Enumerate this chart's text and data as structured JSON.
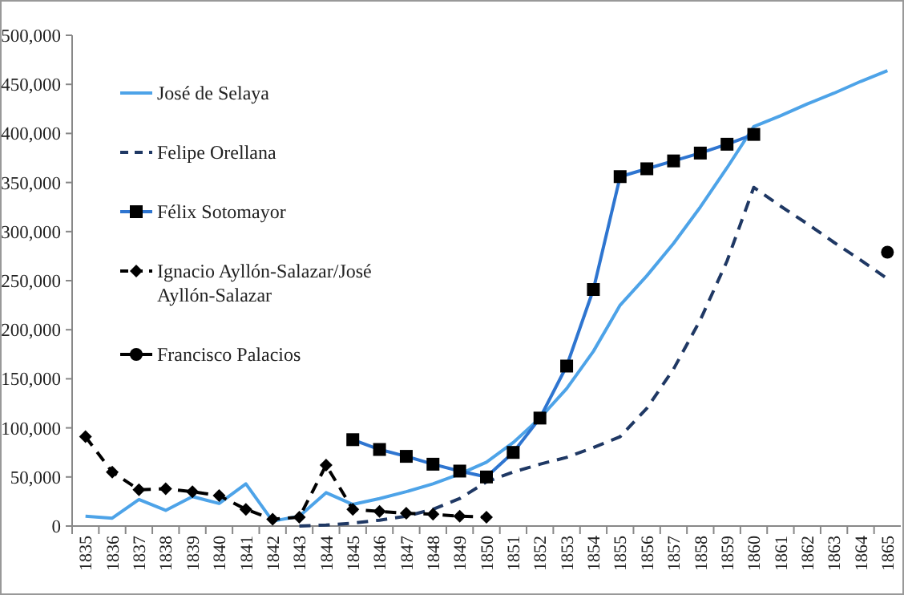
{
  "chart_data": {
    "type": "line",
    "categories": [
      "1835",
      "1836",
      "1837",
      "1838",
      "1839",
      "1840",
      "1841",
      "1842",
      "1843",
      "1844",
      "1845",
      "1846",
      "1847",
      "1848",
      "1849",
      "1850",
      "1851",
      "1852",
      "1853",
      "1854",
      "1855",
      "1856",
      "1857",
      "1858",
      "1859",
      "1860",
      "1861",
      "1862",
      "1863",
      "1864",
      "1865"
    ],
    "ylim": [
      0,
      500000
    ],
    "yticks": [
      {
        "value": 0,
        "label": "0"
      },
      {
        "value": 50000,
        "label": "50,000"
      },
      {
        "value": 100000,
        "label": "100,000"
      },
      {
        "value": 150000,
        "label": "150,000"
      },
      {
        "value": 200000,
        "label": "200,000"
      },
      {
        "value": 250000,
        "label": "250,000"
      },
      {
        "value": 300000,
        "label": "300,000"
      },
      {
        "value": 350000,
        "label": "350,000"
      },
      {
        "value": 400000,
        "label": "400,000"
      },
      {
        "value": 450000,
        "label": "450,000"
      },
      {
        "value": 500000,
        "label": "500,000"
      }
    ],
    "grid": false,
    "legend": "top left",
    "series": [
      {
        "name": "José de Selaya",
        "color": "#4da3e8",
        "line_style": "solid",
        "marker": "none",
        "values": [
          10000,
          8000,
          27000,
          16000,
          30000,
          23000,
          43000,
          5000,
          10000,
          34000,
          22000,
          28000,
          35000,
          43000,
          53000,
          65000,
          85000,
          110000,
          140000,
          178000,
          225000,
          255000,
          288000,
          325000,
          365000,
          407000,
          418000,
          430000,
          441000,
          453000,
          464000
        ]
      },
      {
        "name": "Felipe Orellana",
        "color": "#1f3864",
        "line_style": "dashed",
        "marker": "none",
        "values": [
          null,
          null,
          null,
          null,
          null,
          null,
          null,
          null,
          0,
          1000,
          3000,
          6000,
          10000,
          17000,
          28000,
          45000,
          55000,
          63000,
          70000,
          80000,
          91000,
          120000,
          160000,
          210000,
          270000,
          345000,
          326000,
          308000,
          289000,
          271000,
          252000
        ]
      },
      {
        "name": "Félix Sotomayor",
        "color": "#2e75d0",
        "line_style": "solid",
        "marker": "square",
        "values": [
          null,
          null,
          null,
          null,
          null,
          null,
          null,
          null,
          null,
          null,
          88000,
          78000,
          71000,
          63000,
          56000,
          50000,
          75000,
          110000,
          163000,
          241000,
          356000,
          364000,
          372000,
          380000,
          389000,
          399000,
          null,
          null,
          null,
          null,
          null
        ]
      },
      {
        "name": "Ignacio Ayllón-Salazar/José Ayllón-Salazar",
        "color": "#000000",
        "line_style": "dashed",
        "marker": "diamond",
        "values": [
          91000,
          55000,
          37000,
          38000,
          35000,
          31000,
          17000,
          7000,
          9000,
          62000,
          17000,
          15000,
          13000,
          12000,
          10000,
          9000,
          null,
          null,
          null,
          null,
          null,
          null,
          null,
          null,
          null,
          null,
          null,
          null,
          null,
          null,
          null
        ]
      },
      {
        "name": "Francisco Palacios",
        "type": "scatter",
        "color": "#000000",
        "marker": "circle",
        "values": [
          null,
          null,
          null,
          null,
          null,
          null,
          null,
          null,
          null,
          null,
          null,
          null,
          null,
          null,
          null,
          null,
          null,
          null,
          null,
          null,
          null,
          null,
          null,
          null,
          null,
          null,
          null,
          null,
          null,
          null,
          279000
        ]
      }
    ]
  }
}
